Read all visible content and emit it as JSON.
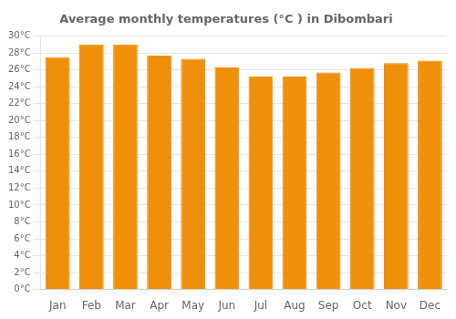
{
  "chart_data": {
    "type": "bar",
    "title": "Average monthly temperatures (°C ) in Dibombari",
    "categories": [
      "Jan",
      "Feb",
      "Mar",
      "Apr",
      "May",
      "Jun",
      "Jul",
      "Aug",
      "Sep",
      "Oct",
      "Nov",
      "Dec"
    ],
    "values": [
      27.5,
      29.0,
      29.0,
      27.7,
      27.3,
      26.3,
      25.2,
      25.2,
      25.7,
      26.2,
      26.8,
      27.1
    ],
    "color": "#F0900A",
    "ylim": [
      0,
      30
    ],
    "yticks": [
      {
        "value": 0,
        "label": "0°C"
      },
      {
        "value": 2,
        "label": "2°C"
      },
      {
        "value": 4,
        "label": "4°C"
      },
      {
        "value": 6,
        "label": "6°C"
      },
      {
        "value": 8,
        "label": "8°C"
      },
      {
        "value": 10,
        "label": "10°C"
      },
      {
        "value": 12,
        "label": "12°C"
      },
      {
        "value": 14,
        "label": "14°C"
      },
      {
        "value": 16,
        "label": "16°C"
      },
      {
        "value": 18,
        "label": "18°C"
      },
      {
        "value": 20,
        "label": "20°C"
      },
      {
        "value": 22,
        "label": "22°C"
      },
      {
        "value": 24,
        "label": "24°C"
      },
      {
        "value": 26,
        "label": "26°C"
      },
      {
        "value": 28,
        "label": "28°C"
      },
      {
        "value": 30,
        "label": "30°C"
      }
    ],
    "grid": true
  }
}
